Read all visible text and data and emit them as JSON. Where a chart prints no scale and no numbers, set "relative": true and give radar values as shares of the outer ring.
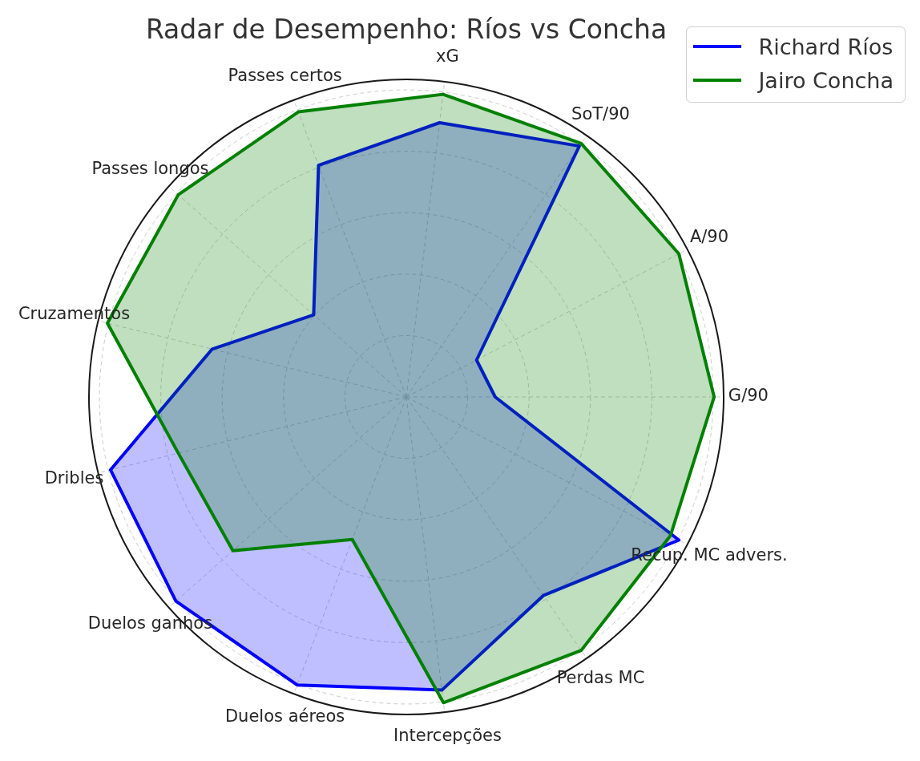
{
  "chart_data": {
    "type": "radar",
    "title": "Radar de Desempenho: Ríos vs Concha",
    "categories": [
      "xG",
      "SoT/90",
      "A/90",
      "G/90",
      "Recup. MC advers.",
      "Perdas MC",
      "Intercepções",
      "Duelos aéreos",
      "Duelos ganhos",
      "Dribles",
      "Cruzamentos",
      "Passes longos",
      "Passes certos"
    ],
    "series": [
      {
        "name": "Richard Ríos",
        "color": "#0000ff",
        "values": [
          0.87,
          0.96,
          0.25,
          0.28,
          0.97,
          0.76,
          0.93,
          0.97,
          0.97,
          0.96,
          0.63,
          0.39,
          0.78
        ]
      },
      {
        "name": "Jairo Concha",
        "color": "#008000",
        "values": [
          0.96,
          0.97,
          0.97,
          0.97,
          0.94,
          0.97,
          0.97,
          0.48,
          0.73,
          0.74,
          0.97,
          0.96,
          0.96
        ]
      }
    ],
    "relative": true,
    "grid": true,
    "legend": "top right"
  }
}
